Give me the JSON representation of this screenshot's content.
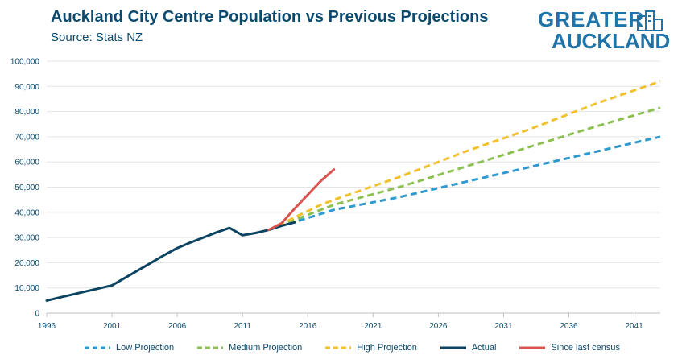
{
  "header": {
    "title": "Auckland City Centre Population vs Previous Projections",
    "subtitle": "Source: Stats NZ"
  },
  "logo": {
    "line1": "GREATER",
    "line2": "AUCKLAND",
    "color": "#1e73a8"
  },
  "chart_data": {
    "type": "line",
    "title": "Auckland City Centre Population vs Previous Projections",
    "subtitle": "Source: Stats NZ",
    "xlim": [
      1996,
      2043
    ],
    "ylim": [
      0,
      100000
    ],
    "x_ticks": [
      1996,
      2001,
      2006,
      2011,
      2016,
      2021,
      2026,
      2031,
      2036,
      2041
    ],
    "y_ticks": [
      0,
      10000,
      20000,
      30000,
      40000,
      50000,
      60000,
      70000,
      80000,
      90000,
      100000
    ],
    "y_tick_labels": [
      "0",
      "10,000",
      "20,000",
      "30,000",
      "40,000",
      "50,000",
      "60,000",
      "70,000",
      "80,000",
      "90,000",
      "100,000"
    ],
    "grid": true,
    "legend_position": "bottom",
    "series": [
      {
        "name": "Low Projection",
        "color": "#2e9ad0",
        "style": "dashed",
        "points": [
          [
            2013,
            33000
          ],
          [
            2014,
            34600
          ],
          [
            2015,
            36200
          ],
          [
            2016,
            37800
          ],
          [
            2017,
            39400
          ],
          [
            2018,
            41000
          ],
          [
            2023,
            46000
          ],
          [
            2028,
            52000
          ],
          [
            2033,
            58000
          ],
          [
            2038,
            64000
          ],
          [
            2043,
            70000
          ]
        ]
      },
      {
        "name": "Medium Projection",
        "color": "#8cc152",
        "style": "dashed",
        "points": [
          [
            2013,
            33000
          ],
          [
            2014,
            35000
          ],
          [
            2015,
            37000
          ],
          [
            2016,
            39000
          ],
          [
            2017,
            41000
          ],
          [
            2018,
            43000
          ],
          [
            2023,
            50000
          ],
          [
            2028,
            58000
          ],
          [
            2033,
            66000
          ],
          [
            2038,
            74000
          ],
          [
            2043,
            81500
          ]
        ]
      },
      {
        "name": "High Projection",
        "color": "#f2c12e",
        "style": "dashed",
        "points": [
          [
            2013,
            33000
          ],
          [
            2014,
            35500
          ],
          [
            2015,
            38000
          ],
          [
            2016,
            40500
          ],
          [
            2017,
            43000
          ],
          [
            2018,
            45000
          ],
          [
            2023,
            54000
          ],
          [
            2028,
            64000
          ],
          [
            2033,
            73000
          ],
          [
            2038,
            83000
          ],
          [
            2043,
            92000
          ]
        ]
      },
      {
        "name": "Actual",
        "color": "#0b4461",
        "style": "solid",
        "points": [
          [
            1996,
            5000
          ],
          [
            1997,
            6200
          ],
          [
            1998,
            7400
          ],
          [
            1999,
            8600
          ],
          [
            2000,
            9800
          ],
          [
            2001,
            11000
          ],
          [
            2002,
            14000
          ],
          [
            2003,
            17000
          ],
          [
            2004,
            20000
          ],
          [
            2005,
            23000
          ],
          [
            2006,
            25800
          ],
          [
            2007,
            28000
          ],
          [
            2008,
            30000
          ],
          [
            2009,
            32000
          ],
          [
            2010,
            33800
          ],
          [
            2011,
            30900
          ],
          [
            2012,
            31800
          ],
          [
            2013,
            33000
          ],
          [
            2014,
            34700
          ],
          [
            2015,
            36000
          ]
        ]
      },
      {
        "name": "Since last census",
        "color": "#d9534f",
        "style": "solid",
        "points": [
          [
            2013,
            33000
          ],
          [
            2014,
            35700
          ],
          [
            2015,
            41500
          ],
          [
            2016,
            47000
          ],
          [
            2017,
            52500
          ],
          [
            2018,
            57000
          ]
        ]
      }
    ]
  }
}
